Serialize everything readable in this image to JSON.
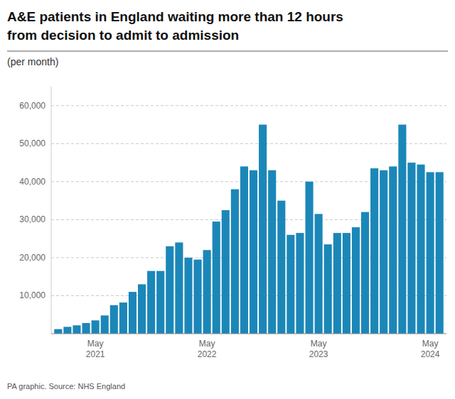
{
  "chart_data": {
    "type": "bar",
    "title": "A&E patients in England waiting more than 12 hours\nfrom decision to admit to admission",
    "subtitle": "(per month)",
    "source": "PA graphic. Source: NHS England",
    "color": "#1b87b8",
    "grid": true,
    "categories": [
      null,
      null,
      null,
      null,
      "May\n2021",
      null,
      null,
      null,
      null,
      null,
      null,
      null,
      null,
      null,
      null,
      null,
      "May\n2022",
      null,
      null,
      null,
      null,
      null,
      null,
      null,
      null,
      null,
      null,
      null,
      "May\n2023",
      null,
      null,
      null,
      null,
      null,
      null,
      null,
      null,
      null,
      null,
      null,
      "May\n2024",
      null
    ],
    "values": [
      1200,
      1800,
      2200,
      2800,
      3500,
      4800,
      7500,
      8200,
      11000,
      13000,
      16500,
      16500,
      23000,
      24000,
      20000,
      19500,
      22000,
      29500,
      32500,
      38000,
      44000,
      43000,
      55000,
      43000,
      35000,
      26000,
      26500,
      40000,
      31500,
      23500,
      26500,
      26500,
      28000,
      32000,
      43500,
      43000,
      44000,
      55000,
      45000,
      44500,
      42500,
      42500
    ],
    "ylim": [
      0,
      65000
    ],
    "yticks": [
      {
        "value": 10000,
        "label": "10,000"
      },
      {
        "value": 20000,
        "label": "20,000"
      },
      {
        "value": 30000,
        "label": "30,000"
      },
      {
        "value": 40000,
        "label": "40,000"
      },
      {
        "value": 50000,
        "label": "50,000"
      },
      {
        "value": 60000,
        "label": "60,000"
      }
    ]
  }
}
